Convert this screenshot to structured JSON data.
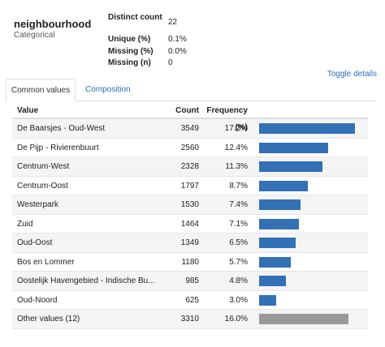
{
  "variable": {
    "name": "neighbourhood",
    "type": "Categorical"
  },
  "stats": [
    {
      "label": "Distinct count",
      "value": "22"
    },
    {
      "label": "Unique (%)",
      "value": "0.1%"
    },
    {
      "label": "Missing (%)",
      "value": "0.0%"
    },
    {
      "label": "Missing (n)",
      "value": "0"
    }
  ],
  "toggle_label": "Toggle details",
  "tabs": [
    {
      "label": "Common values",
      "active": true
    },
    {
      "label": "Composition",
      "active": false
    }
  ],
  "table": {
    "headers": {
      "value": "Value",
      "count": "Count",
      "frequency": "Frequency (%)"
    },
    "rows": [
      {
        "value": "De Baarsjes - Oud-West",
        "count": "3549",
        "freq": "17.2%",
        "fraction": 0.172,
        "other": false
      },
      {
        "value": "De Pijp - Rivierenbuurt",
        "count": "2560",
        "freq": "12.4%",
        "fraction": 0.124,
        "other": false
      },
      {
        "value": "Centrum-West",
        "count": "2328",
        "freq": "11.3%",
        "fraction": 0.113,
        "other": false
      },
      {
        "value": "Centrum-Oost",
        "count": "1797",
        "freq": "8.7%",
        "fraction": 0.087,
        "other": false
      },
      {
        "value": "Westerpark",
        "count": "1530",
        "freq": "7.4%",
        "fraction": 0.074,
        "other": false
      },
      {
        "value": "Zuid",
        "count": "1464",
        "freq": "7.1%",
        "fraction": 0.071,
        "other": false
      },
      {
        "value": "Oud-Oost",
        "count": "1349",
        "freq": "6.5%",
        "fraction": 0.065,
        "other": false
      },
      {
        "value": "Bos en Lommer",
        "count": "1180",
        "freq": "5.7%",
        "fraction": 0.057,
        "other": false
      },
      {
        "value": "Oostelijk Havengebied - Indische Bu...",
        "count": "985",
        "freq": "4.8%",
        "fraction": 0.048,
        "other": false
      },
      {
        "value": "Oud-Noord",
        "count": "625",
        "freq": "3.0%",
        "fraction": 0.03,
        "other": false
      },
      {
        "value": "Other values (12)",
        "count": "3310",
        "freq": "16.0%",
        "fraction": 0.16,
        "other": true
      }
    ]
  },
  "colors": {
    "bar": "#3370b5",
    "other_bar": "#999999",
    "link": "#2a6ebb"
  }
}
